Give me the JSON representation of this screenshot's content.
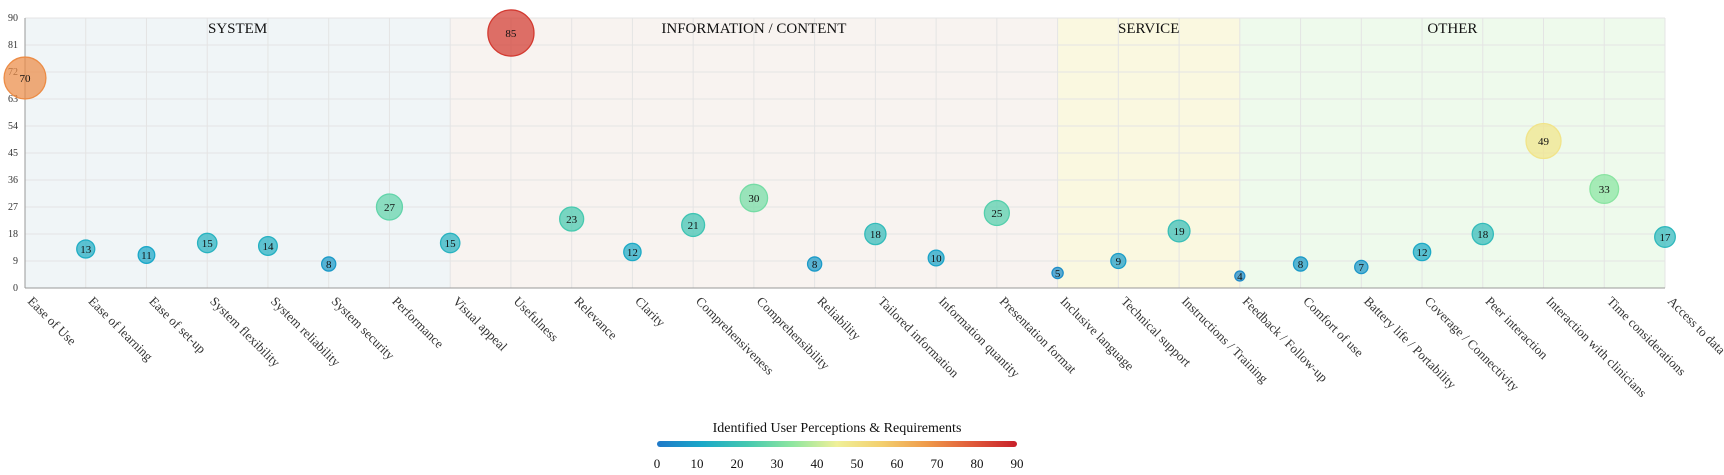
{
  "chart_data": {
    "type": "scatter",
    "xlabel": "",
    "ylabel": "",
    "ylim": [
      0,
      90
    ],
    "y_ticks": [
      0,
      9,
      18,
      27,
      36,
      45,
      54,
      63,
      72,
      81,
      90
    ],
    "grid": true,
    "categories": [
      "Ease of Use",
      "Ease of learning",
      "Ease of set-up",
      "System flexibility",
      "System reliability",
      "System security",
      "Performance",
      "Visual appeal",
      "Usefulness",
      "Relevance",
      "Clarity",
      "Comprehensiveness",
      "Comprehensibility",
      "Reliability",
      "Tailored information",
      "Information quantity",
      "Presentation format",
      "Inclusive language",
      "Technical support",
      "Instructions / Training",
      "Feedback / Follow-up",
      "Comfort of use",
      "Battery life / Portability",
      "Coverage / Connectivity",
      "Peer interaction",
      "Interaction with clinicians",
      "Time considerations",
      "Access to data"
    ],
    "values": [
      70,
      13,
      11,
      15,
      14,
      8,
      27,
      15,
      85,
      23,
      12,
      21,
      30,
      8,
      18,
      10,
      25,
      5,
      9,
      19,
      4,
      8,
      7,
      12,
      18,
      49,
      33,
      17
    ],
    "regions": [
      {
        "label": "SYSTEM",
        "start": 0,
        "end": 7,
        "color": "#f0f5f7"
      },
      {
        "label": "INFORMATION / CONTENT",
        "start": 7,
        "end": 17,
        "color": "#f8f3f0"
      },
      {
        "label": "SERVICE",
        "start": 17,
        "end": 20,
        "color": "#faf8e0"
      },
      {
        "label": "OTHER",
        "start": 20,
        "end": 27,
        "color": "#eefaec"
      }
    ],
    "colorscale": {
      "title": "Identified User Perceptions & Requirements",
      "range": [
        0,
        90
      ],
      "ticks": [
        0,
        10,
        20,
        30,
        40,
        50,
        60,
        70,
        80,
        90
      ],
      "stops": [
        "#1f78c8",
        "#1aa8c8",
        "#44c8b0",
        "#8ee6a0",
        "#f0f098",
        "#f3cf6e",
        "#ef9a4a",
        "#e05a3a",
        "#c8202a"
      ]
    }
  }
}
